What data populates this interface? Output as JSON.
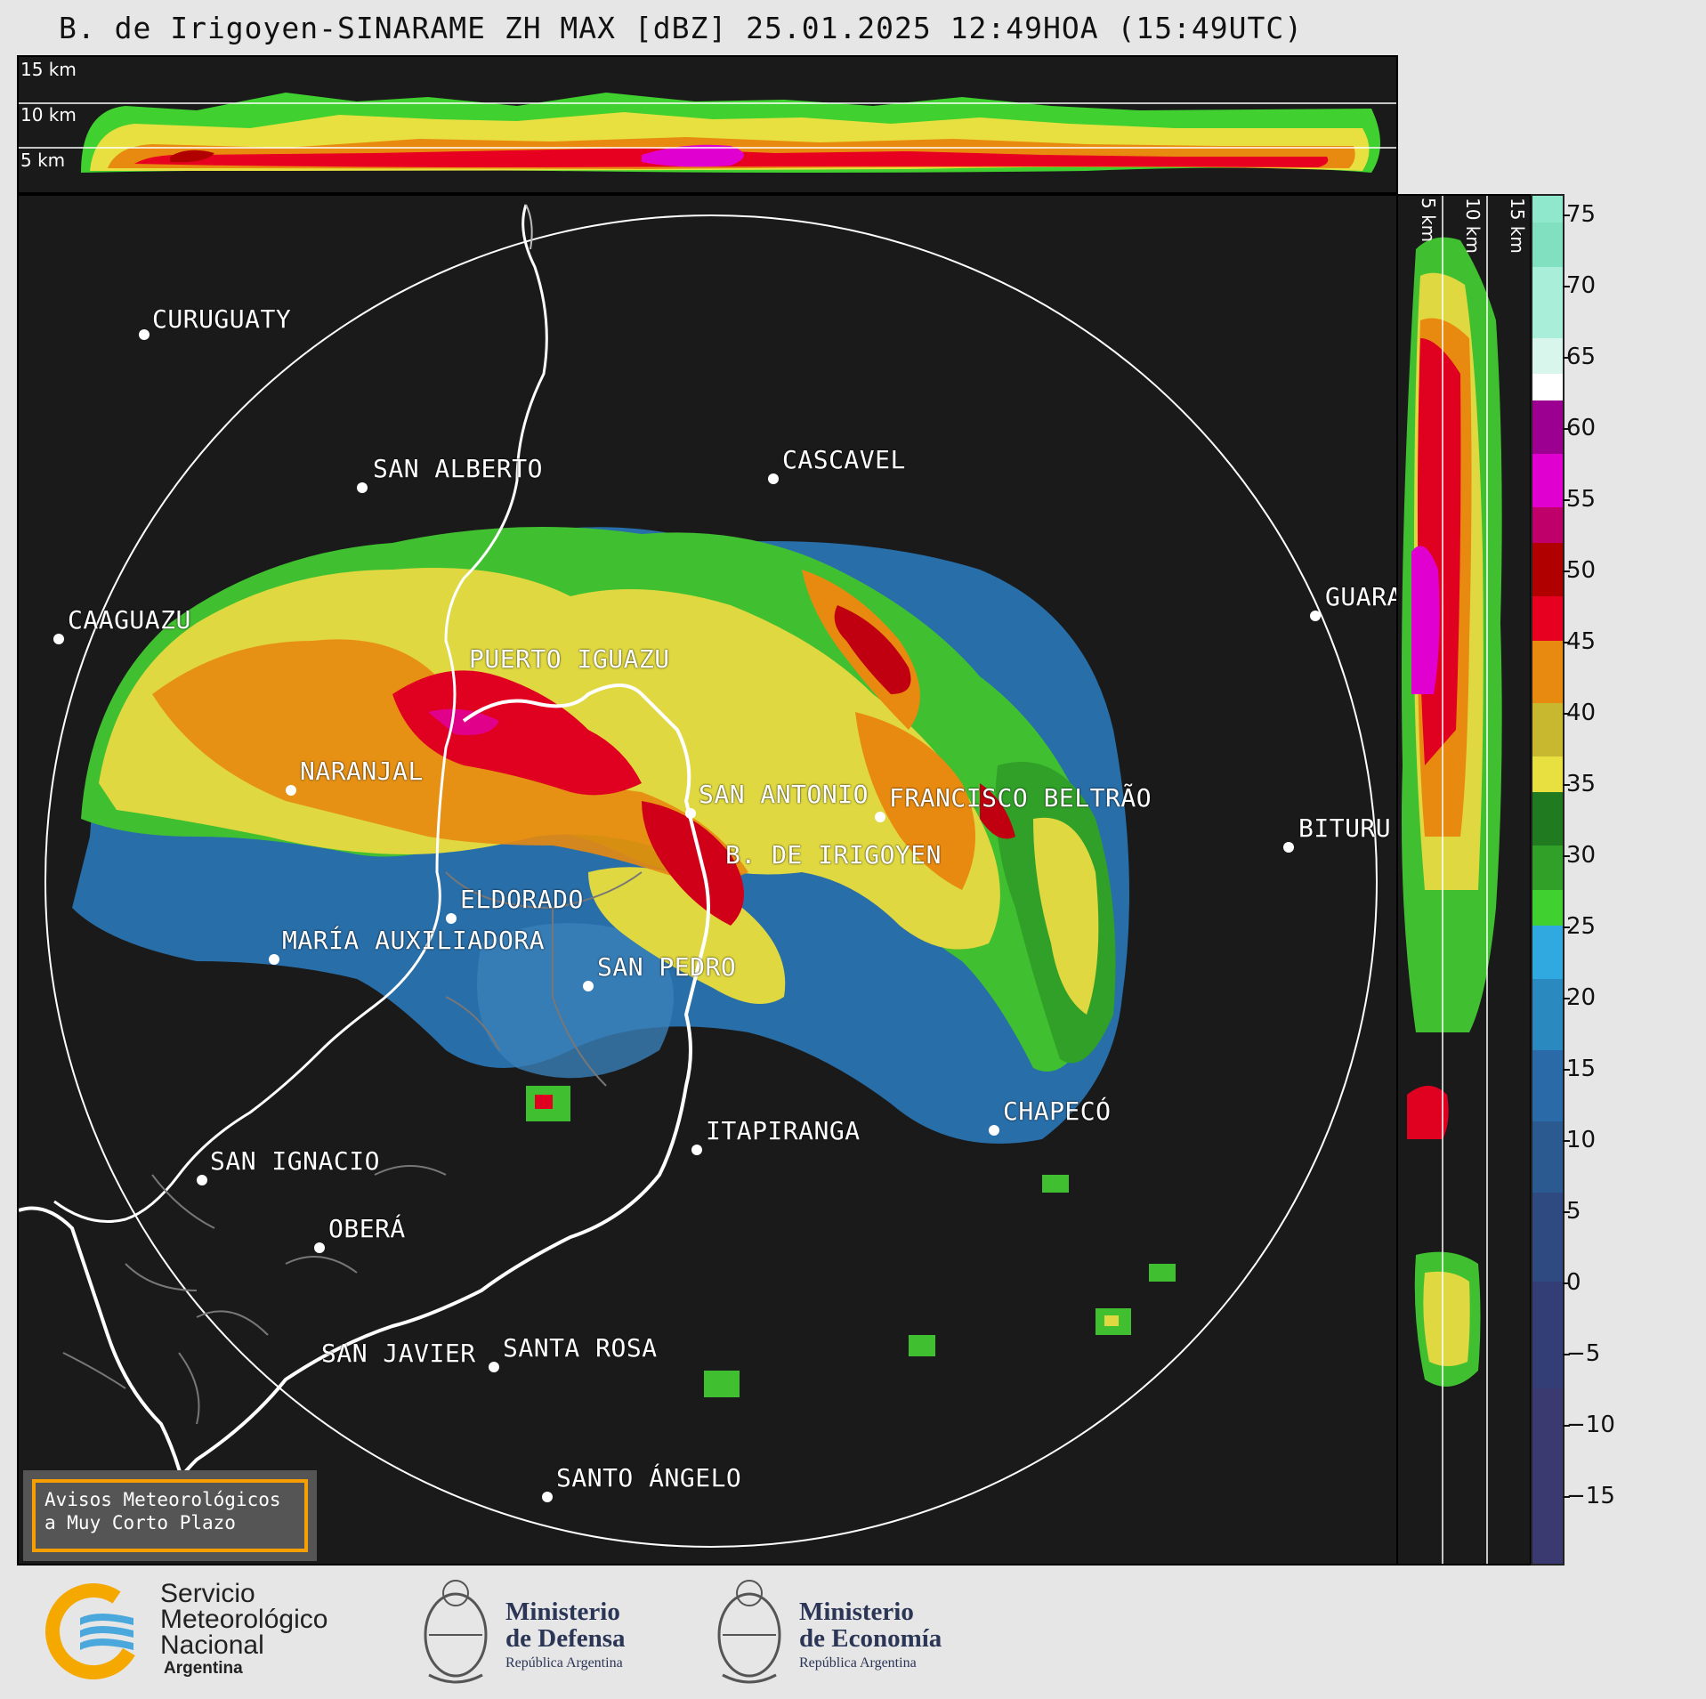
{
  "title": "B. de Irigoyen-SINARAME ZH MAX [dBZ] 25.01.2025 12:49HOA (15:49UTC)",
  "top_section": {
    "height_labels": [
      "15 km",
      "10 km",
      "5 km"
    ]
  },
  "side_section": {
    "height_labels": [
      "5 km",
      "10 km",
      "15 km"
    ]
  },
  "colorbar": {
    "unit": "dBZ",
    "ticks": [
      "75",
      "70",
      "65",
      "60",
      "55",
      "50",
      "45",
      "40",
      "35",
      "30",
      "25",
      "20",
      "15",
      "10",
      "5",
      "0",
      "−5",
      "−10",
      "−15"
    ],
    "range": [
      -20,
      77
    ],
    "colors": {
      "light_aqua": "#7fe0c0",
      "white": "#ffffff",
      "purple": "#9c0090",
      "magenta": "#e000d0",
      "dark_red": "#b00000",
      "red": "#e80020",
      "orange": "#e88a10",
      "yellow": "#e8e040",
      "dark_green": "#207a20",
      "green": "#40d030",
      "light_blue": "#30a8e0",
      "blue": "#2a6aa8",
      "dark_blue": "#3a3a70"
    }
  },
  "cities": [
    {
      "name": "CURUGUATY"
    },
    {
      "name": "SAN ALBERTO"
    },
    {
      "name": "CASCAVEL"
    },
    {
      "name": "CAAGUAZU"
    },
    {
      "name": "GUARA"
    },
    {
      "name": "PUERTO IGUAZU"
    },
    {
      "name": "NARANJAL"
    },
    {
      "name": "SAN ANTONIO"
    },
    {
      "name": "FRANCISCO BELTRÃO"
    },
    {
      "name": "BITURU"
    },
    {
      "name": "B. DE IRIGOYEN"
    },
    {
      "name": "ELDORADO"
    },
    {
      "name": "MARÍA AUXILIADORA"
    },
    {
      "name": "SAN PEDRO"
    },
    {
      "name": "CHAPECÓ"
    },
    {
      "name": "ITAPIRANGA"
    },
    {
      "name": "SAN IGNACIO"
    },
    {
      "name": "OBERÁ"
    },
    {
      "name": "SAN JAVIER"
    },
    {
      "name": "SANTA ROSA"
    },
    {
      "name": "SANTO ÁNGELO"
    }
  ],
  "avisos": {
    "line1": "Avisos Meteorológicos",
    "line2": "a Muy Corto Plazo"
  },
  "logos": {
    "smn": {
      "line1": "Servicio",
      "line2": "Meteorológico",
      "line3": "Nacional",
      "line4": "Argentina"
    },
    "defensa": {
      "line1": "Ministerio",
      "line2": "de Defensa",
      "sub": "República Argentina"
    },
    "economia": {
      "line1": "Ministerio",
      "line2": "de Economía",
      "sub": "República Argentina"
    }
  }
}
